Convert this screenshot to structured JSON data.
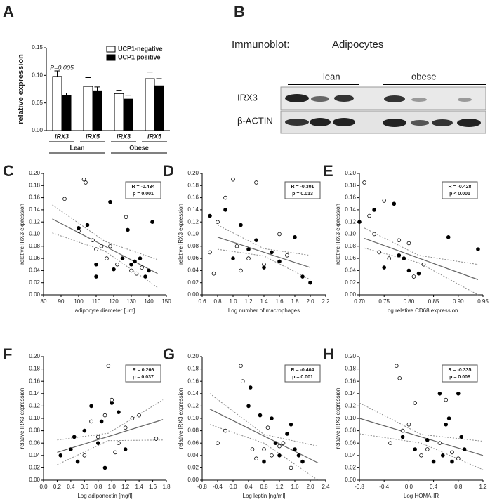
{
  "chart_data": [
    {
      "type": "bar",
      "label": "A",
      "ylabel": "relative expression",
      "annotation": "P=0.005",
      "categories": [
        "IRX3",
        "IRX5",
        "IRX3",
        "IRX5"
      ],
      "groups": [
        "Lean",
        "Obese"
      ],
      "ylim": [
        0,
        0.15
      ],
      "yticks": [
        {
          "value": 0,
          "label": "0.00"
        },
        {
          "value": 0.05,
          "label": "0.05"
        },
        {
          "value": 0.1,
          "label": "0.10"
        },
        {
          "value": 0.15,
          "label": "0.15"
        }
      ],
      "series": [
        {
          "name": "UCP1-negative",
          "color": "#ffffff",
          "values": [
            0.098,
            0.08,
            0.067,
            0.094
          ],
          "errors": [
            0.01,
            0.016,
            0.006,
            0.012
          ]
        },
        {
          "name": "UCP1 positive",
          "color": "#000000",
          "values": [
            0.063,
            0.072,
            0.057,
            0.081
          ],
          "errors": [
            0.005,
            0.007,
            0.007,
            0.013
          ]
        }
      ]
    },
    {
      "type": "scatter",
      "label": "C",
      "xlabel": "adipocyte diameter [µm]",
      "ylabel": "relative IRX3 expression",
      "r_text": "R = -0.434",
      "p_text": "p = 0.001",
      "xlim": [
        80,
        150
      ],
      "xticks": [
        80,
        90,
        100,
        110,
        120,
        130,
        140,
        150
      ],
      "ylim": [
        0,
        0.2
      ],
      "yticks": [
        {
          "value": 0,
          "label": "0.00"
        },
        {
          "value": 0.02,
          "label": "0.02"
        },
        {
          "value": 0.04,
          "label": "0.04"
        },
        {
          "value": 0.06,
          "label": "0.06"
        },
        {
          "value": 0.08,
          "label": "0.08"
        },
        {
          "value": 0.1,
          "label": "0.10"
        },
        {
          "value": 0.12,
          "label": "0.12"
        },
        {
          "value": 0.14,
          "label": "0.14"
        },
        {
          "value": 0.16,
          "label": "0.16"
        },
        {
          "value": 0.18,
          "label": "0.18"
        },
        {
          "value": 0.2,
          "label": "0.20"
        }
      ],
      "series": [
        {
          "color": "#ffffff",
          "x": [
            92,
            100,
            103,
            104,
            108,
            110,
            113,
            116,
            118,
            122,
            127,
            130,
            133,
            136
          ],
          "values": [
            0.158,
            0.105,
            0.19,
            0.185,
            0.09,
            0.075,
            0.08,
            0.06,
            0.08,
            0.05,
            0.128,
            0.04,
            0.035,
            0.045
          ]
        },
        {
          "color": "#000000",
          "x": [
            100,
            105,
            110,
            118,
            120,
            125,
            128,
            130,
            132,
            135,
            138,
            140,
            142,
            110
          ],
          "values": [
            0.11,
            0.115,
            0.05,
            0.153,
            0.042,
            0.06,
            0.107,
            0.05,
            0.055,
            0.06,
            0.03,
            0.04,
            0.12,
            0.03
          ]
        }
      ],
      "fit": {
        "x": [
          85,
          145
        ],
        "values": [
          0.125,
          0.035
        ]
      },
      "ci": {
        "x": [
          85,
          115,
          145
        ],
        "upper": [
          0.148,
          0.088,
          0.058
        ],
        "lower": [
          0.102,
          0.072,
          0.012
        ]
      }
    },
    {
      "type": "scatter",
      "label": "D",
      "xlabel": "Log number of macrophages",
      "ylabel": "relative IRX3 expression",
      "r_text": "R = -0.301",
      "p_text": "p = 0.013",
      "xlim": [
        0.6,
        2.2
      ],
      "xticks": [
        0.6,
        0.8,
        {
          "value": 1,
          "label": "1.0"
        },
        1.2,
        1.4,
        1.6,
        1.8,
        {
          "value": 2,
          "label": "2.0"
        },
        2.2
      ],
      "ylim": [
        0,
        0.2
      ],
      "yticks": [
        {
          "value": 0,
          "label": "0.00"
        },
        {
          "value": 0.02,
          "label": "0.02"
        },
        {
          "value": 0.04,
          "label": "0.04"
        },
        {
          "value": 0.06,
          "label": "0.06"
        },
        {
          "value": 0.08,
          "label": "0.08"
        },
        {
          "value": 0.1,
          "label": "0.10"
        },
        {
          "value": 0.12,
          "label": "0.12"
        },
        {
          "value": 0.14,
          "label": "0.14"
        },
        {
          "value": 0.16,
          "label": "0.16"
        },
        {
          "value": 0.18,
          "label": "0.18"
        },
        {
          "value": 0.2,
          "label": "0.20"
        }
      ],
      "series": [
        {
          "color": "#ffffff",
          "x": [
            0.7,
            0.75,
            0.8,
            0.9,
            1.0,
            1.05,
            1.1,
            1.2,
            1.3,
            1.4,
            1.6,
            1.7
          ],
          "values": [
            0.07,
            0.035,
            0.12,
            0.16,
            0.19,
            0.08,
            0.04,
            0.06,
            0.185,
            0.05,
            0.1,
            0.065
          ]
        },
        {
          "color": "#000000",
          "x": [
            0.7,
            0.9,
            1.0,
            1.1,
            1.2,
            1.3,
            1.4,
            1.5,
            1.6,
            1.8,
            1.9,
            2.0
          ],
          "values": [
            0.13,
            0.14,
            0.06,
            0.115,
            0.075,
            0.09,
            0.045,
            0.07,
            0.055,
            0.095,
            0.03,
            0.02
          ]
        }
      ],
      "fit": {
        "x": [
          0.8,
          2.0
        ],
        "values": [
          0.095,
          0.045
        ]
      },
      "ci": {
        "x": [
          0.8,
          1.4,
          2.0
        ],
        "upper": [
          0.115,
          0.076,
          0.065
        ],
        "lower": [
          0.075,
          0.064,
          0.025
        ]
      }
    },
    {
      "type": "scatter",
      "label": "E",
      "xlabel": "Log relative CD68 expression",
      "ylabel": "relative IRX3 expression",
      "r_text": "R = -0.428",
      "p_text": "p < 0.001",
      "xlim": [
        0.7,
        0.95
      ],
      "xticks": [
        {
          "value": 0.7,
          "label": "0.70"
        },
        0.75,
        {
          "value": 0.8,
          "label": "0.80"
        },
        0.85,
        {
          "value": 0.9,
          "label": "0.90"
        },
        0.95
      ],
      "ylim": [
        0,
        0.2
      ],
      "yticks": [
        {
          "value": 0,
          "label": "0.00"
        },
        {
          "value": 0.02,
          "label": "0.02"
        },
        {
          "value": 0.04,
          "label": "0.04"
        },
        {
          "value": 0.06,
          "label": "0.06"
        },
        {
          "value": 0.08,
          "label": "0.08"
        },
        {
          "value": 0.1,
          "label": "0.10"
        },
        {
          "value": 0.12,
          "label": "0.12"
        },
        {
          "value": 0.14,
          "label": "0.14"
        },
        {
          "value": 0.16,
          "label": "0.16"
        },
        {
          "value": 0.18,
          "label": "0.18"
        },
        {
          "value": 0.2,
          "label": "0.20"
        }
      ],
      "series": [
        {
          "color": "#ffffff",
          "x": [
            0.71,
            0.72,
            0.73,
            0.74,
            0.75,
            0.76,
            0.78,
            0.8,
            0.81,
            0.83
          ],
          "values": [
            0.185,
            0.13,
            0.1,
            0.07,
            0.155,
            0.06,
            0.09,
            0.085,
            0.03,
            0.05
          ]
        },
        {
          "color": "#000000",
          "x": [
            0.7,
            0.73,
            0.75,
            0.77,
            0.78,
            0.79,
            0.8,
            0.82,
            0.88,
            0.94
          ],
          "values": [
            0.12,
            0.14,
            0.045,
            0.15,
            0.065,
            0.06,
            0.04,
            0.035,
            0.095,
            0.075
          ]
        }
      ],
      "fit": {
        "x": [
          0.71,
          0.94
        ],
        "values": [
          0.093,
          0.025
        ]
      },
      "ci": {
        "x": [
          0.71,
          0.82,
          0.94
        ],
        "upper": [
          0.11,
          0.065,
          0.05
        ],
        "lower": [
          0.077,
          0.053,
          0.0
        ]
      }
    },
    {
      "type": "scatter",
      "label": "F",
      "xlabel": "Log adiponectin [mg/l]",
      "ylabel": "relative IRX3 expression",
      "r_text": "R = 0.266",
      "p_text": "p = 0.037",
      "xlim": [
        0,
        1.8
      ],
      "xticks": [
        {
          "value": 0,
          "label": "0.0"
        },
        0.2,
        0.4,
        0.6,
        0.8,
        {
          "value": 1,
          "label": "1.0"
        },
        1.2,
        1.4,
        1.6,
        1.8
      ],
      "ylim": [
        0,
        0.2
      ],
      "yticks": [
        {
          "value": 0,
          "label": "0.00"
        },
        {
          "value": 0.02,
          "label": "0.02"
        },
        {
          "value": 0.04,
          "label": "0.04"
        },
        {
          "value": 0.06,
          "label": "0.06"
        },
        {
          "value": 0.08,
          "label": "0.08"
        },
        {
          "value": 0.1,
          "label": "0.10"
        },
        {
          "value": 0.12,
          "label": "0.12"
        },
        {
          "value": 0.14,
          "label": "0.14"
        },
        {
          "value": 0.16,
          "label": "0.16"
        },
        {
          "value": 0.18,
          "label": "0.18"
        },
        {
          "value": 0.2,
          "label": "0.20"
        }
      ],
      "series": [
        {
          "color": "#ffffff",
          "x": [
            0.8,
            0.9,
            0.95,
            1.0,
            1.1,
            1.2,
            1.3,
            1.4,
            0.7,
            1.65,
            0.6,
            1.05
          ],
          "values": [
            0.07,
            0.105,
            0.185,
            0.13,
            0.06,
            0.085,
            0.1,
            0.105,
            0.095,
            0.067,
            0.04,
            0.045
          ]
        },
        {
          "color": "#000000",
          "x": [
            0.25,
            0.4,
            0.5,
            0.6,
            0.7,
            0.8,
            0.9,
            1.0,
            1.1,
            1.2,
            0.45,
            0.85
          ],
          "values": [
            0.04,
            0.05,
            0.03,
            0.08,
            0.12,
            0.06,
            0.02,
            0.125,
            0.11,
            0.05,
            0.07,
            0.095
          ]
        }
      ],
      "fit": {
        "x": [
          0.2,
          1.75
        ],
        "values": [
          0.045,
          0.098
        ]
      },
      "ci": {
        "x": [
          0.2,
          0.95,
          1.75
        ],
        "upper": [
          0.065,
          0.076,
          0.13
        ],
        "lower": [
          0.025,
          0.064,
          0.065
        ]
      }
    },
    {
      "type": "scatter",
      "label": "G",
      "xlabel": "Log leptin [ng/ml]",
      "ylabel": "relative IRX3 expression",
      "r_text": "R = -0.404",
      "p_text": "p = 0.001",
      "xlim": [
        -0.8,
        2.4
      ],
      "xticks": [
        -0.8,
        -0.4,
        {
          "value": 0,
          "label": "0.0"
        },
        0.4,
        0.8,
        1.2,
        1.6,
        {
          "value": 2,
          "label": "2.0"
        },
        2.4
      ],
      "ylim": [
        0,
        0.2
      ],
      "yticks": [
        {
          "value": 0,
          "label": "0.00"
        },
        {
          "value": 0.02,
          "label": "0.02"
        },
        {
          "value": 0.04,
          "label": "0.04"
        },
        {
          "value": 0.06,
          "label": "0.06"
        },
        {
          "value": 0.08,
          "label": "0.08"
        },
        {
          "value": 0.1,
          "label": "0.10"
        },
        {
          "value": 0.12,
          "label": "0.12"
        },
        {
          "value": 0.14,
          "label": "0.14"
        },
        {
          "value": 0.16,
          "label": "0.16"
        },
        {
          "value": 0.18,
          "label": "0.18"
        },
        {
          "value": 0.2,
          "label": "0.20"
        }
      ],
      "series": [
        {
          "color": "#ffffff",
          "x": [
            -0.2,
            0.2,
            0.25,
            0.5,
            0.6,
            0.8,
            1.0,
            1.2,
            1.3,
            1.5,
            -0.4,
            0.9
          ],
          "values": [
            0.08,
            0.185,
            0.16,
            0.05,
            0.035,
            0.05,
            0.04,
            0.055,
            0.06,
            0.02,
            0.06,
            0.085
          ]
        },
        {
          "color": "#000000",
          "x": [
            0.4,
            0.7,
            0.8,
            1.0,
            1.1,
            1.2,
            1.4,
            1.5,
            1.6,
            1.7,
            1.8,
            0.45
          ],
          "values": [
            0.12,
            0.105,
            0.03,
            0.1,
            0.06,
            0.04,
            0.075,
            0.09,
            0.05,
            0.04,
            0.03,
            0.15
          ]
        }
      ],
      "fit": {
        "x": [
          -0.6,
          2.2
        ],
        "values": [
          0.115,
          0.028
        ]
      },
      "ci": {
        "x": [
          -0.6,
          0.8,
          2.2
        ],
        "upper": [
          0.14,
          0.074,
          0.055
        ],
        "lower": [
          0.09,
          0.06,
          0.0
        ]
      }
    },
    {
      "type": "scatter",
      "label": "H",
      "xlabel": "Log HOMA-IR",
      "ylabel": "relative IRX3 expression",
      "r_text": "R = -0.335",
      "p_text": "p = 0.008",
      "xlim": [
        -0.8,
        1.2
      ],
      "xticks": [
        -0.8,
        -0.4,
        {
          "value": 0,
          "label": "0.0"
        },
        0.4,
        0.8,
        1.2
      ],
      "ylim": [
        0,
        0.2
      ],
      "yticks": [
        {
          "value": 0,
          "label": "0.00"
        },
        {
          "value": 0.02,
          "label": "0.02"
        },
        {
          "value": 0.04,
          "label": "0.04"
        },
        {
          "value": 0.06,
          "label": "0.06"
        },
        {
          "value": 0.08,
          "label": "0.08"
        },
        {
          "value": 0.1,
          "label": "0.10"
        },
        {
          "value": 0.12,
          "label": "0.12"
        },
        {
          "value": 0.14,
          "label": "0.14"
        },
        {
          "value": 0.16,
          "label": "0.16"
        },
        {
          "value": 0.18,
          "label": "0.18"
        },
        {
          "value": 0.2,
          "label": "0.20"
        }
      ],
      "series": [
        {
          "color": "#ffffff",
          "x": [
            -0.2,
            -0.15,
            -0.1,
            0.0,
            0.1,
            0.3,
            0.5,
            0.6,
            0.7,
            -0.3,
            0.2,
            0.8
          ],
          "values": [
            0.185,
            0.165,
            0.08,
            0.09,
            0.125,
            0.05,
            0.06,
            0.13,
            0.045,
            0.06,
            0.04,
            0.035
          ]
        },
        {
          "color": "#000000",
          "x": [
            -0.1,
            0.1,
            0.3,
            0.5,
            0.55,
            0.6,
            0.7,
            0.8,
            0.85,
            0.9,
            0.65,
            0.4
          ],
          "values": [
            0.07,
            0.05,
            0.065,
            0.14,
            0.04,
            0.09,
            0.03,
            0.14,
            0.07,
            0.05,
            0.1,
            0.03
          ]
        }
      ],
      "fit": {
        "x": [
          -0.8,
          1.2
        ],
        "values": [
          0.1,
          0.04
        ]
      },
      "ci": {
        "x": [
          -0.8,
          0.2,
          1.2
        ],
        "upper": [
          0.125,
          0.074,
          0.063
        ],
        "lower": [
          0.075,
          0.06,
          0.017
        ]
      }
    }
  ],
  "blot": {
    "label": "B",
    "method": "Immunoblot:",
    "sample": "Adipocytes",
    "groups": [
      "lean",
      "obese"
    ],
    "rows": [
      "IRX3",
      "β-ACTIN"
    ]
  }
}
